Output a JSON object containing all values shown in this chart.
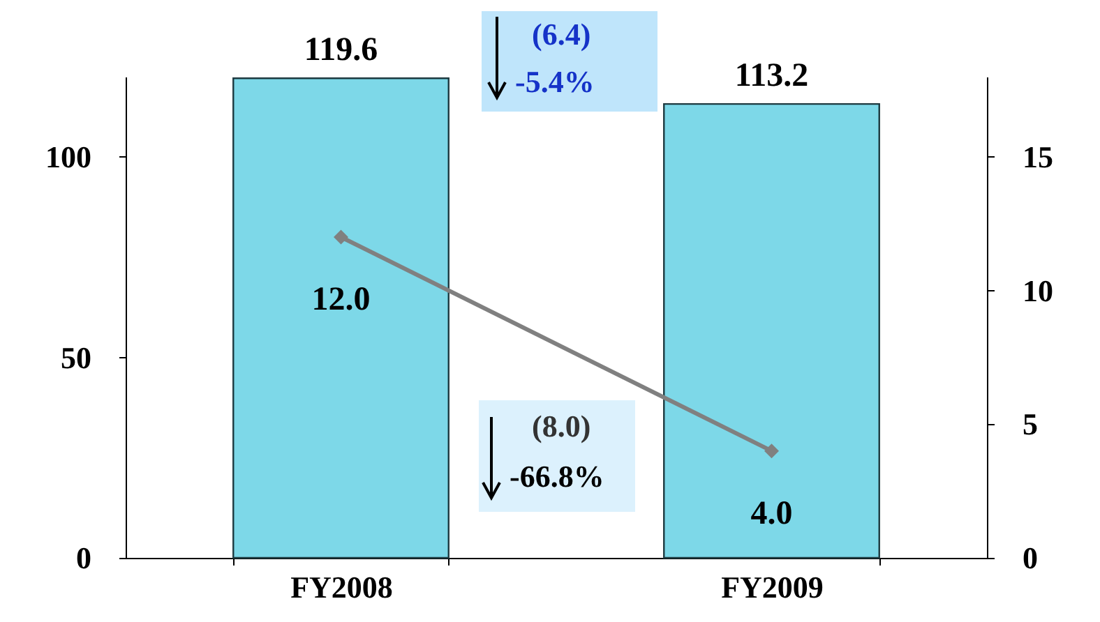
{
  "chart_data": {
    "type": "bar",
    "categories": [
      "FY2008",
      "FY2009"
    ],
    "series": [
      {
        "color": "#7dd8e8",
        "values": [
          119.6,
          113.2
        ],
        "value_labels": [
          "119.6",
          "113.2"
        ]
      },
      {
        "type": "line",
        "axis": "y2",
        "color": "#808080",
        "values": [
          12.0,
          4.0
        ],
        "value_labels": [
          "12.0",
          "4.0"
        ]
      }
    ],
    "ylim": [
      0,
      120
    ],
    "yticks": [
      0,
      50,
      100
    ],
    "y2lim": [
      0,
      18
    ],
    "y2ticks": [
      0,
      5,
      10,
      15
    ],
    "marker": "diamond",
    "line_style": "solid",
    "grid": false,
    "annotations": [
      "(6.4)",
      "-5.4%",
      "(8.0)",
      "-66.8%"
    ]
  }
}
